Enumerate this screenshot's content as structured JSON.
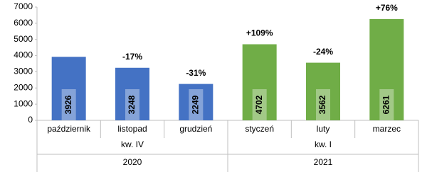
{
  "chart_data": {
    "type": "bar",
    "categories": [
      "październik",
      "listopad",
      "grudzień",
      "styczeń",
      "luty",
      "marzec"
    ],
    "values": [
      3926,
      3248,
      2249,
      4702,
      3562,
      6261
    ],
    "colors": [
      "#4472c4",
      "#4472c4",
      "#4472c4",
      "#70ad47",
      "#70ad47",
      "#70ad47"
    ],
    "annotations": [
      null,
      "-17%",
      "-31%",
      "+109%",
      "-24%",
      "+76%"
    ],
    "category_levels": [
      [
        "kw. IV",
        "kw. IV",
        "kw. IV",
        "kw. I",
        "kw. I",
        "kw. I"
      ],
      [
        "2020",
        "2020",
        "2020",
        "2021",
        "2021",
        "2021"
      ]
    ],
    "ylim": [
      0,
      7000
    ],
    "yticks": [
      0,
      1000,
      2000,
      3000,
      4000,
      5000,
      6000,
      7000
    ],
    "grid": false
  }
}
